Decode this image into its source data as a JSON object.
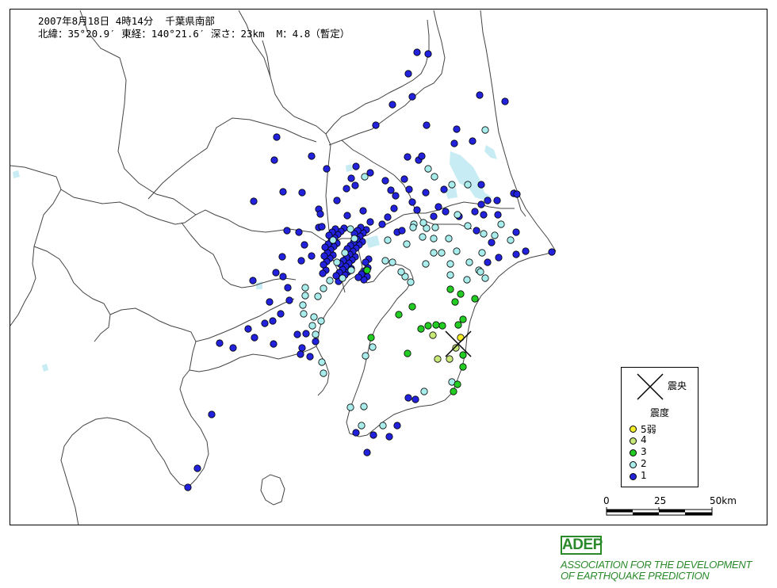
{
  "header": {
    "line1": "2007年8月18日 4時14分  千葉県南部",
    "line2": "北緯：35°20.9′ 東経：140°21.6′ 深さ：23km  M：4.8（暫定）"
  },
  "legend": {
    "epicenter_label": "震央",
    "intensity_title": "震度",
    "items": [
      {
        "label": "5弱",
        "color": "#f4ef2a"
      },
      {
        "label": "4",
        "color": "#c8e878"
      },
      {
        "label": "3",
        "color": "#22cc22"
      },
      {
        "label": "2",
        "color": "#a8ecec"
      },
      {
        "label": "1",
        "color": "#2222dd"
      }
    ]
  },
  "scale": {
    "labels": [
      "0",
      "25",
      "50km"
    ]
  },
  "logo": {
    "abbr": "ADEP",
    "line1": "ASSOCIATION FOR THE DEVELOPMENT",
    "line2": "OF EARTHQUAKE PREDICTION"
  },
  "stations": {
    "i5": [
      [
        580,
        425
      ]
    ],
    "i4": [
      [
        545,
        422
      ],
      [
        574,
        438
      ],
      [
        551,
        452
      ],
      [
        566,
        452
      ]
    ],
    "i3": [
      [
        567,
        364
      ],
      [
        580,
        370
      ],
      [
        573,
        380
      ],
      [
        598,
        376
      ],
      [
        519,
        386
      ],
      [
        502,
        396
      ],
      [
        539,
        410
      ],
      [
        549,
        409
      ],
      [
        557,
        410
      ],
      [
        577,
        409
      ],
      [
        583,
        402
      ],
      [
        513,
        445
      ],
      [
        467,
        425
      ],
      [
        583,
        447
      ],
      [
        583,
        462
      ],
      [
        571,
        493
      ],
      [
        576,
        484
      ],
      [
        462,
        340
      ],
      [
        530,
        414
      ]
    ],
    "i2": [
      [
        459,
        222
      ],
      [
        539,
        212
      ],
      [
        547,
        222
      ],
      [
        569,
        232
      ],
      [
        589,
        232
      ],
      [
        611,
        163
      ],
      [
        631,
        282
      ],
      [
        643,
        302
      ],
      [
        623,
        296
      ],
      [
        609,
        294
      ],
      [
        589,
        284
      ],
      [
        576,
        270
      ],
      [
        565,
        300
      ],
      [
        546,
        300
      ],
      [
        532,
        298
      ],
      [
        521,
        282
      ],
      [
        537,
        287
      ],
      [
        548,
        286
      ],
      [
        512,
        307
      ],
      [
        488,
        302
      ],
      [
        494,
        330
      ],
      [
        510,
        348
      ],
      [
        517,
        355
      ],
      [
        505,
        342
      ],
      [
        536,
        332
      ],
      [
        546,
        318
      ],
      [
        556,
        318
      ],
      [
        575,
        316
      ],
      [
        567,
        332
      ],
      [
        567,
        346
      ],
      [
        607,
        318
      ],
      [
        591,
        330
      ],
      [
        603,
        340
      ],
      [
        611,
        350
      ],
      [
        605,
        342
      ],
      [
        588,
        352
      ],
      [
        419,
        302
      ],
      [
        441,
        288
      ],
      [
        434,
        318
      ],
      [
        424,
        330
      ],
      [
        442,
        340
      ],
      [
        431,
        350
      ],
      [
        415,
        353
      ],
      [
        407,
        363
      ],
      [
        400,
        373
      ],
      [
        384,
        362
      ],
      [
        384,
        372
      ],
      [
        381,
        384
      ],
      [
        382,
        395
      ],
      [
        395,
        399
      ],
      [
        404,
        404
      ],
      [
        393,
        410
      ],
      [
        397,
        421
      ],
      [
        405,
        456
      ],
      [
        407,
        470
      ],
      [
        460,
        448
      ],
      [
        469,
        437
      ],
      [
        458,
        512
      ],
      [
        441,
        513
      ],
      [
        455,
        536
      ],
      [
        482,
        536
      ],
      [
        534,
        493
      ],
      [
        569,
        481
      ],
      [
        485,
        328
      ],
      [
        520,
        286
      ],
      [
        533,
        280
      ],
      [
        446,
        300
      ]
    ]
  }
}
